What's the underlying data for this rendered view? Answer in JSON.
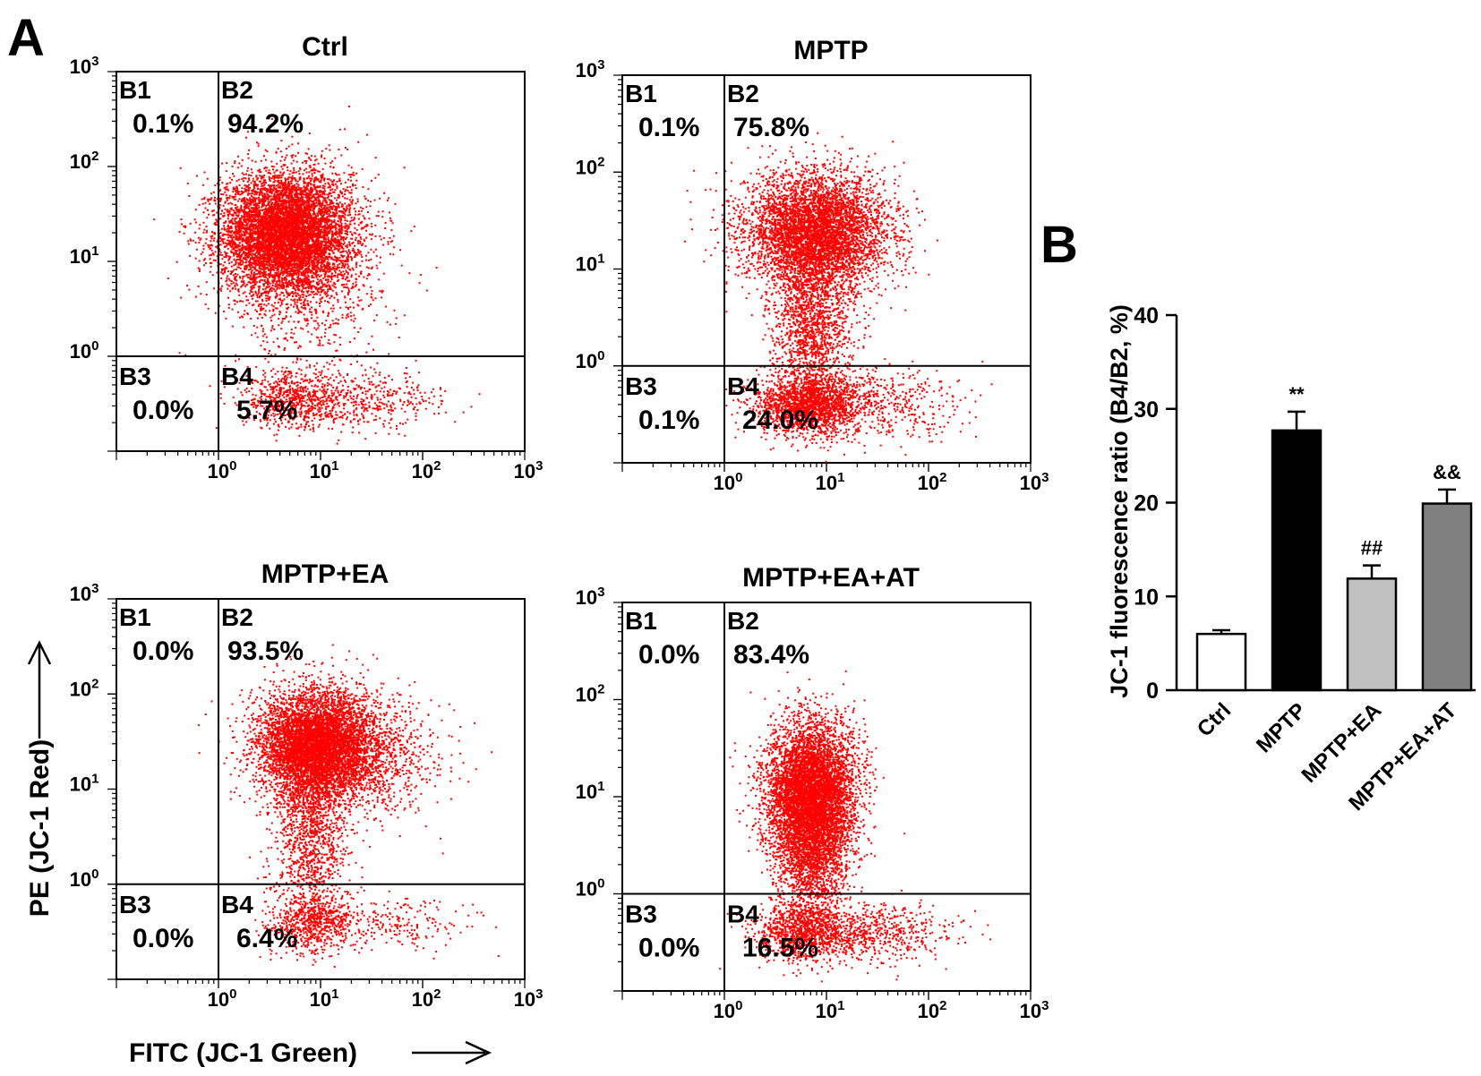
{
  "panel_labels": {
    "a": "A",
    "b": "B"
  },
  "flow_axis": {
    "y_label": "PE (JC-1 Red)",
    "x_label": "FITC (JC-1 Green)",
    "tick_base": "10",
    "tick_exponents": [
      "0",
      "1",
      "2",
      "3"
    ]
  },
  "chart_data": [
    {
      "type": "scatter",
      "subtype": "flow-cytometry-quadrant",
      "title": "Ctrl",
      "xscale": "log",
      "yscale": "log",
      "xlim": [
        0.1,
        1000
      ],
      "ylim": [
        0.1,
        1000
      ],
      "gate": {
        "x": 1,
        "y": 1
      },
      "quadrants": [
        {
          "name": "B1",
          "percent": "0.1%"
        },
        {
          "name": "B2",
          "percent": "94.2%"
        },
        {
          "name": "B3",
          "percent": "0.0%"
        },
        {
          "name": "B4",
          "percent": "5.7%"
        }
      ],
      "populations": [
        {
          "cx": 4.5,
          "cy": 20,
          "sx": 0.32,
          "sy": 0.32,
          "weight": 0.78
        },
        {
          "cx": 8,
          "cy": 8,
          "sx": 0.4,
          "sy": 0.55,
          "weight": 0.1
        },
        {
          "cx": 5,
          "cy": 0.35,
          "sx": 0.25,
          "sy": 0.15,
          "weight": 0.06
        },
        {
          "cx": 20,
          "cy": 0.35,
          "sx": 0.45,
          "sy": 0.15,
          "weight": 0.06
        }
      ]
    },
    {
      "type": "scatter",
      "subtype": "flow-cytometry-quadrant",
      "title": "MPTP",
      "xscale": "log",
      "yscale": "log",
      "xlim": [
        0.1,
        1000
      ],
      "ylim": [
        0.1,
        1000
      ],
      "gate": {
        "x": 1,
        "y": 1
      },
      "quadrants": [
        {
          "name": "B1",
          "percent": "0.1%"
        },
        {
          "name": "B2",
          "percent": "75.8%"
        },
        {
          "name": "B3",
          "percent": "0.1%"
        },
        {
          "name": "B4",
          "percent": "24.0%"
        }
      ],
      "populations": [
        {
          "cx": 8,
          "cy": 25,
          "sx": 0.35,
          "sy": 0.3,
          "weight": 0.55
        },
        {
          "cx": 7,
          "cy": 3,
          "sx": 0.2,
          "sy": 0.5,
          "weight": 0.2
        },
        {
          "cx": 6,
          "cy": 0.4,
          "sx": 0.25,
          "sy": 0.15,
          "weight": 0.18
        },
        {
          "cx": 25,
          "cy": 0.4,
          "sx": 0.45,
          "sy": 0.18,
          "weight": 0.07
        }
      ]
    },
    {
      "type": "scatter",
      "subtype": "flow-cytometry-quadrant",
      "title": "MPTP+EA",
      "xscale": "log",
      "yscale": "log",
      "xlim": [
        0.1,
        1000
      ],
      "ylim": [
        0.1,
        1000
      ],
      "gate": {
        "x": 1,
        "y": 1
      },
      "quadrants": [
        {
          "name": "B1",
          "percent": "0.0%"
        },
        {
          "name": "B2",
          "percent": "93.5%"
        },
        {
          "name": "B3",
          "percent": "0.0%"
        },
        {
          "name": "B4",
          "percent": "6.4%"
        }
      ],
      "populations": [
        {
          "cx": 9,
          "cy": 30,
          "sx": 0.28,
          "sy": 0.28,
          "weight": 0.65
        },
        {
          "cx": 30,
          "cy": 20,
          "sx": 0.35,
          "sy": 0.3,
          "weight": 0.1
        },
        {
          "cx": 8,
          "cy": 4,
          "sx": 0.18,
          "sy": 0.5,
          "weight": 0.15
        },
        {
          "cx": 8,
          "cy": 0.4,
          "sx": 0.2,
          "sy": 0.15,
          "weight": 0.07
        },
        {
          "cx": 40,
          "cy": 0.4,
          "sx": 0.4,
          "sy": 0.15,
          "weight": 0.03
        }
      ]
    },
    {
      "type": "scatter",
      "subtype": "flow-cytometry-quadrant",
      "title": "MPTP+EA+AT",
      "xscale": "log",
      "yscale": "log",
      "xlim": [
        0.1,
        1000
      ],
      "ylim": [
        0.1,
        1000
      ],
      "gate": {
        "x": 1,
        "y": 1
      },
      "quadrants": [
        {
          "name": "B1",
          "percent": "0.0%"
        },
        {
          "name": "B2",
          "percent": "83.4%"
        },
        {
          "name": "B3",
          "percent": "0.0%"
        },
        {
          "name": "B4",
          "percent": "16.5%"
        }
      ],
      "populations": [
        {
          "cx": 7,
          "cy": 12,
          "sx": 0.22,
          "sy": 0.35,
          "weight": 0.62
        },
        {
          "cx": 7,
          "cy": 2.5,
          "sx": 0.18,
          "sy": 0.35,
          "weight": 0.2
        },
        {
          "cx": 6,
          "cy": 0.4,
          "sx": 0.25,
          "sy": 0.15,
          "weight": 0.12
        },
        {
          "cx": 30,
          "cy": 0.4,
          "sx": 0.4,
          "sy": 0.15,
          "weight": 0.06
        }
      ]
    },
    {
      "type": "bar",
      "title": "",
      "categories": [
        "Ctrl",
        "MPTP",
        "MPTP+EA",
        "MPTP+EA+AT"
      ],
      "values": [
        6.0,
        27.7,
        11.9,
        19.9
      ],
      "errors": [
        0.4,
        2.0,
        1.4,
        1.5
      ],
      "fills": [
        "#ffffff",
        "#000000",
        "#c0c0c0",
        "#808080"
      ],
      "annotations": [
        "",
        "**",
        "##",
        "&&"
      ],
      "ylabel": "JC-1 fluorescence ratio (B4/B2, %)",
      "xlabel": "",
      "ylim": [
        0,
        40
      ],
      "yticks": [
        0,
        10,
        20,
        30,
        40
      ]
    }
  ]
}
